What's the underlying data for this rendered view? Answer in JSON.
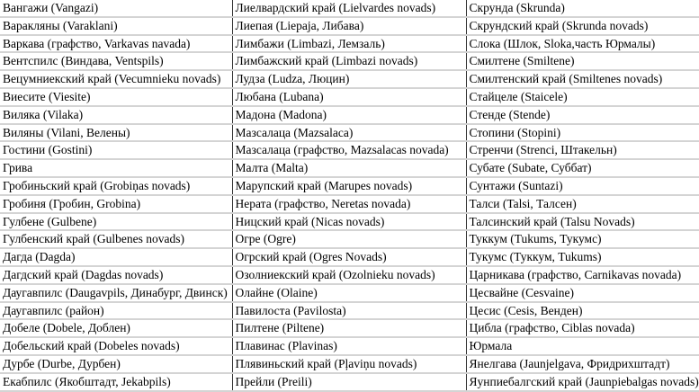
{
  "table": {
    "rows": [
      [
        "Вангажи (Vangazi)",
        "Лиелвардский край (Lielvardes novads)",
        "Скрунда (Skrunda)"
      ],
      [
        "Варакляны (Varaklani)",
        "Лиепая (Liepaja, Либава)",
        "Скрундский край (Skrunda novads)"
      ],
      [
        "Варкава (графство, Varkavas navada)",
        "Лимбажи (Limbazi, Лемзаль)",
        "Слока (Шлок, Sloka,часть Юрмалы)"
      ],
      [
        "Вентспилс (Виндава, Ventspils)",
        "Лимбажский край (Limbazi novads)",
        "Смилтене (Smiltene)"
      ],
      [
        "Вецумниекский край (Vecumnieku novads)",
        "Лудза (Ludza, Люцин)",
        "Смилтенский край (Smiltenes novads)"
      ],
      [
        "Виесите (Viesite)",
        "Любана (Lubana)",
        "Стайцеле (Staicele)"
      ],
      [
        "Виляка (Vilaka)",
        "Мадона (Madona)",
        "Стенде (Stende)"
      ],
      [
        "Виляны (Vilani, Велены)",
        "Мазсалаца (Mazsalaca)",
        "Стопини (Stopini)"
      ],
      [
        "Гостини (Gostini)",
        "Мазсалаца (графство, Mazsalacas novada)",
        "Стренчи (Strenci, Штакельн)"
      ],
      [
        "Грива",
        "Малта (Malta)",
        "Субате (Subate, Суббат)"
      ],
      [
        "Гробиньский край (Grobiņas novads)",
        "Марупский край (Marupes novads)",
        "Сунтажи (Suntazi)"
      ],
      [
        "Гробиня (Гробин, Grobina)",
        "Нерата (графство, Neretas novada)",
        "Талси (Talsi, Талсен)"
      ],
      [
        "Гулбене (Gulbene)",
        "Ницский край (Nicas novads)",
        "Талсинский край (Talsu Novads)"
      ],
      [
        "Гулбенский край (Gulbenes novads)",
        "Огре (Ogre)",
        "Туккум (Tukums, Тукумс)"
      ],
      [
        "Дагда (Dagda)",
        "Огрский край (Ogres Novads)",
        "Тукумс (Туккум, Tukums)"
      ],
      [
        "Дагдский край (Dagdas novads)",
        "Озолниекский край (Ozolnieku novads)",
        "Царникава (графство, Carnikavas novada)"
      ],
      [
        "Даугавпилс (Daugavpils, Динабург, Двинск)",
        "Олайне (Olaine)",
        "Цесвайне (Cesvaine)"
      ],
      [
        "Даугавпилс (район)",
        "Павилоста (Pavilosta)",
        "Цесис (Cesis, Венден)"
      ],
      [
        "Добеле (Dobele, Доблен)",
        "Пилтене (Piltene)",
        "Цибла (графство, Ciblas novada)"
      ],
      [
        "Добельский край (Dobeles novads)",
        "Плавинас (Plavinas)",
        "Юрмала"
      ],
      [
        "Дурбе (Durbe, Дурбен)",
        "Плявиньский край (Pļaviņu novads)",
        "Янелгава (Jaunjelgava, Фридрихштадт)"
      ],
      [
        "Екабпилс (Якобштадт, Jekabpils)",
        "Прейли (Preili)",
        "Яунпиебалгский край (Jaunpiebalgas novads)"
      ]
    ]
  }
}
